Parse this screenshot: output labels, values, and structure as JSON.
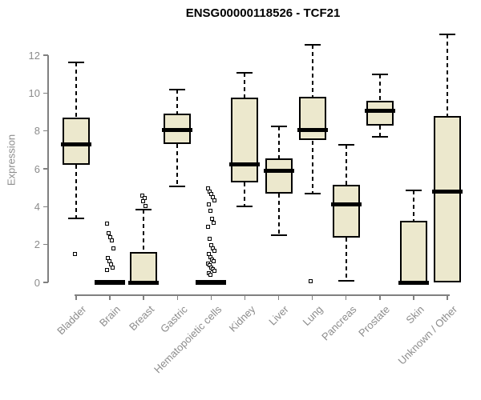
{
  "title": "ENSG00000118526 - TCF21",
  "y_axis": {
    "label": "Expression",
    "ticks": [
      0,
      2,
      4,
      6,
      8,
      10,
      12
    ]
  },
  "colors": {
    "box_fill": "#ece8cd",
    "box_border": "#000000",
    "median": "#000000",
    "axis": "#808080",
    "tick_text": "#8c8c8c",
    "title_text": "#000000",
    "background": "#ffffff"
  },
  "chart_data": {
    "type": "boxplot",
    "title": "ENSG00000118526 - TCF21",
    "xlabel": "",
    "ylabel": "Expression",
    "ylim": [
      0,
      13.2
    ],
    "grid": false,
    "legend": false,
    "categories": [
      "Bladder",
      "Brain",
      "Breast",
      "Gastric",
      "Hematopoietic cells",
      "Kidney",
      "Liver",
      "Lung",
      "Pancreas",
      "Prostate",
      "Skin",
      "Unknown / Other"
    ],
    "series": [
      {
        "name": "Bladder",
        "low": 3.4,
        "q1": 6.2,
        "median": 7.3,
        "q3": 8.7,
        "high": 11.6,
        "outliers": [
          1.5
        ]
      },
      {
        "name": "Brain",
        "low": 0,
        "q1": 0,
        "median": 0,
        "q3": 0,
        "high": 0,
        "outliers": [
          3.1,
          2.6,
          2.4,
          2.2,
          1.8,
          1.3,
          1.1,
          0.95,
          0.8,
          0.65
        ]
      },
      {
        "name": "Breast",
        "low": 0,
        "q1": 0,
        "median": 0,
        "q3": 1.6,
        "high": 3.85,
        "outliers": [
          4.6,
          4.45,
          4.3,
          4.05
        ]
      },
      {
        "name": "Gastric",
        "low": 5.05,
        "q1": 7.3,
        "median": 8.05,
        "q3": 8.9,
        "high": 10.2,
        "outliers": []
      },
      {
        "name": "Hematopoietic cells",
        "low": 0,
        "q1": 0,
        "median": 0,
        "q3": 0,
        "high": 0,
        "outliers": [
          4.95,
          4.8,
          4.65,
          4.5,
          4.35,
          4.1,
          3.8,
          3.35,
          3.15,
          2.95,
          2.3,
          1.95,
          1.8,
          1.65,
          1.5,
          1.35,
          1.2,
          1.1,
          1.0,
          0.9,
          0.8,
          0.7,
          0.6,
          0.5,
          0.4
        ]
      },
      {
        "name": "Kidney",
        "low": 4.0,
        "q1": 5.3,
        "median": 6.25,
        "q3": 9.75,
        "high": 11.05,
        "outliers": []
      },
      {
        "name": "Liver",
        "low": 2.5,
        "q1": 4.7,
        "median": 5.9,
        "q3": 6.55,
        "high": 8.25,
        "outliers": []
      },
      {
        "name": "Lung",
        "low": 4.7,
        "q1": 7.5,
        "median": 8.05,
        "q3": 9.8,
        "high": 12.55,
        "outliers": [
          0.05
        ]
      },
      {
        "name": "Pancreas",
        "low": 0.1,
        "q1": 2.35,
        "median": 4.1,
        "q3": 5.15,
        "high": 7.25,
        "outliers": []
      },
      {
        "name": "Prostate",
        "low": 7.7,
        "q1": 8.3,
        "median": 9.05,
        "q3": 9.6,
        "high": 11.0,
        "outliers": []
      },
      {
        "name": "Skin",
        "low": 0,
        "q1": 0,
        "median": 0,
        "q3": 3.25,
        "high": 4.85,
        "outliers": []
      },
      {
        "name": "Unknown / Other",
        "low": 0,
        "q1": 0,
        "median": 4.8,
        "q3": 8.8,
        "high": 13.1,
        "outliers": []
      }
    ]
  }
}
